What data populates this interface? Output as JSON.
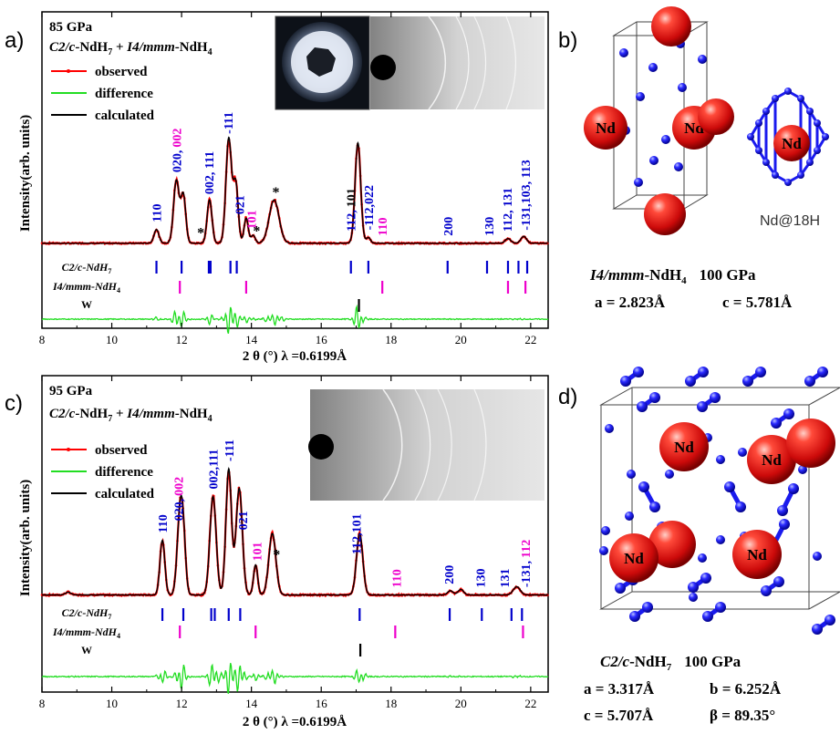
{
  "colors": {
    "observed": "#ff0000",
    "difference": "#22dd22",
    "calculated": "#000000",
    "c2c_ticks": "#0000cc",
    "i4_ticks": "#ee00cc",
    "w_ticks": "#000000",
    "nd_atom": "#dd1111",
    "h_atom": "#1a1aee"
  },
  "panels": {
    "a": {
      "letter": "a)",
      "pressure": "85 GPa",
      "phase_c2c": "C2/c",
      "phase_c2c_rest": "-NdH",
      "phase_c2c_sub": "7",
      "phase_plus": " + ",
      "phase_i4": "I4/mmm",
      "phase_i4_rest": "-NdH",
      "phase_i4_sub": "4",
      "legend_observed": "observed",
      "legend_difference": "difference",
      "legend_calculated": "calculated",
      "row_c2c": "C2/c-NdH",
      "row_c2c_sub": "7",
      "row_i4": "I4/mmm-NdH",
      "row_i4_sub": "4",
      "row_w": "W",
      "ylabel": "Intensity(arb. units)",
      "xlabel": "2 θ (°) λ =0.6199Å"
    },
    "c": {
      "letter": "c)",
      "pressure": "95 GPa",
      "phase_c2c": "C2/c",
      "phase_c2c_rest": "-NdH",
      "phase_c2c_sub": "7",
      "phase_plus": " + ",
      "phase_i4": "I4/mmm",
      "phase_i4_rest": "-NdH",
      "phase_i4_sub": "4",
      "legend_observed": "observed",
      "legend_difference": "difference",
      "legend_calculated": "calculated",
      "row_c2c": "C2/c-NdH",
      "row_c2c_sub": "7",
      "row_i4": "I4/mmm-NdH",
      "row_i4_sub": "4",
      "row_w": "W",
      "ylabel": "Intensity(arb. units)",
      "xlabel": "2 θ (°) λ =0.6199Å"
    },
    "b": {
      "letter": "b)",
      "nd_label": "Nd",
      "cage_caption": "Nd@18H",
      "structure_name": "I4/mmm",
      "structure_rest": "-NdH",
      "structure_sub": "4",
      "structure_pressure": "100 GPa",
      "param_a": "a = 2.823Å",
      "param_c": "c = 5.781Å"
    },
    "d": {
      "letter": "d)",
      "nd_label": "Nd",
      "structure_name": "C2/c",
      "structure_rest": "-NdH",
      "structure_sub": "7",
      "structure_pressure": "100 GPa",
      "param_a": "a = 3.317Å",
      "param_b": "b = 6.252Å",
      "param_c": "c = 5.707Å",
      "param_beta": "β = 89.35°"
    }
  },
  "chart_data": [
    {
      "type": "line",
      "panel": "a",
      "title": "85 GPa",
      "xlabel": "2 θ (°) λ =0.6199Å",
      "ylabel": "Intensity(arb. units)",
      "xlim": [
        8,
        22.5
      ],
      "xticks": [
        8,
        10,
        12,
        14,
        16,
        18,
        20,
        22
      ],
      "background": 0.05,
      "peaks": [
        {
          "x": 11.28,
          "h": 0.12,
          "w": 0.07
        },
        {
          "x": 11.85,
          "h": 0.55,
          "w": 0.08
        },
        {
          "x": 12.05,
          "h": 0.42,
          "w": 0.07
        },
        {
          "x": 12.8,
          "h": 0.38,
          "w": 0.07
        },
        {
          "x": 13.35,
          "h": 0.92,
          "w": 0.08
        },
        {
          "x": 13.55,
          "h": 0.52,
          "w": 0.07
        },
        {
          "x": 13.85,
          "h": 0.22,
          "w": 0.06
        },
        {
          "x": 14.05,
          "h": 0.07,
          "w": 0.06
        },
        {
          "x": 14.65,
          "h": 0.38,
          "w": 0.14
        },
        {
          "x": 17.05,
          "h": 0.88,
          "w": 0.08
        },
        {
          "x": 17.35,
          "h": 0.05,
          "w": 0.06
        },
        {
          "x": 21.35,
          "h": 0.04,
          "w": 0.08
        },
        {
          "x": 21.8,
          "h": 0.06,
          "w": 0.08
        }
      ],
      "hkl_labels": [
        {
          "x": 11.28,
          "label": "110",
          "phase": "c2c"
        },
        {
          "x": 11.85,
          "label": "020,",
          "phase": "c2c",
          "extra": "002",
          "extra_phase": "i4"
        },
        {
          "x": 12.78,
          "label": "002, 111",
          "phase": "c2c"
        },
        {
          "x": 13.33,
          "label": "-111",
          "phase": "c2c"
        },
        {
          "x": 13.65,
          "label": "021",
          "phase": "c2c"
        },
        {
          "x": 14.0,
          "label": "101",
          "phase": "i4"
        },
        {
          "x": 16.85,
          "label": "112,",
          "phase": "c2c",
          "extra": "101",
          "extra_phase": "w"
        },
        {
          "x": 17.35,
          "label": "-112,022",
          "phase": "c2c"
        },
        {
          "x": 17.75,
          "label": "110",
          "phase": "i4"
        },
        {
          "x": 19.62,
          "label": "200",
          "phase": "c2c"
        },
        {
          "x": 20.8,
          "label": "130",
          "phase": "c2c"
        },
        {
          "x": 21.32,
          "label": "112, 131",
          "phase": "mixed"
        },
        {
          "x": 21.85,
          "label": "-131,103, 113",
          "phase": "mixed"
        }
      ],
      "asterisks": [
        12.55,
        14.15,
        14.7
      ],
      "ticks_c2c": [
        11.28,
        12.0,
        12.78,
        12.83,
        13.4,
        13.58,
        16.85,
        17.35,
        19.62,
        20.75,
        21.35,
        21.65,
        21.9
      ],
      "ticks_i4": [
        11.95,
        13.85,
        17.75,
        21.35,
        21.85
      ],
      "ticks_w": [
        17.08
      ]
    },
    {
      "type": "line",
      "panel": "c",
      "title": "95 GPa",
      "xlabel": "2 θ (°) λ =0.6199Å",
      "ylabel": "Intensity(arb. units)",
      "xlim": [
        8,
        22.5
      ],
      "xticks": [
        8,
        10,
        12,
        14,
        16,
        18,
        20,
        22
      ],
      "background": 0.05,
      "peaks": [
        {
          "x": 8.75,
          "h": 0.02,
          "w": 0.08
        },
        {
          "x": 11.45,
          "h": 0.4,
          "w": 0.07
        },
        {
          "x": 11.95,
          "h": 0.55,
          "w": 0.08
        },
        {
          "x": 12.05,
          "h": 0.35,
          "w": 0.07
        },
        {
          "x": 12.9,
          "h": 0.72,
          "w": 0.09
        },
        {
          "x": 13.35,
          "h": 0.92,
          "w": 0.08
        },
        {
          "x": 13.65,
          "h": 0.78,
          "w": 0.09
        },
        {
          "x": 14.12,
          "h": 0.22,
          "w": 0.06
        },
        {
          "x": 14.6,
          "h": 0.45,
          "w": 0.1
        },
        {
          "x": 17.1,
          "h": 0.45,
          "w": 0.09
        },
        {
          "x": 19.7,
          "h": 0.03,
          "w": 0.08
        },
        {
          "x": 20.0,
          "h": 0.04,
          "w": 0.08
        },
        {
          "x": 21.6,
          "h": 0.06,
          "w": 0.1
        }
      ],
      "hkl_labels": [
        {
          "x": 11.45,
          "label": "110",
          "phase": "c2c"
        },
        {
          "x": 11.9,
          "label": "020,",
          "phase": "c2c",
          "extra": "002",
          "extra_phase": "i4"
        },
        {
          "x": 12.9,
          "label": "002,111",
          "phase": "c2c"
        },
        {
          "x": 13.35,
          "label": "-111",
          "phase": "c2c"
        },
        {
          "x": 13.75,
          "label": "021",
          "phase": "c2c"
        },
        {
          "x": 14.15,
          "label": "101",
          "phase": "i4"
        },
        {
          "x": 17.0,
          "label": "112,101",
          "phase": "c2c"
        },
        {
          "x": 18.15,
          "label": "110",
          "phase": "i4"
        },
        {
          "x": 19.65,
          "label": "200",
          "phase": "c2c"
        },
        {
          "x": 20.55,
          "label": "130",
          "phase": "c2c"
        },
        {
          "x": 21.25,
          "label": "131",
          "phase": "c2c"
        },
        {
          "x": 21.85,
          "label": "-131,",
          "phase": "c2c",
          "extra": "112",
          "extra_phase": "i4"
        }
      ],
      "asterisks": [
        14.72
      ],
      "ticks_c2c": [
        11.45,
        12.05,
        12.85,
        12.95,
        13.35,
        13.68,
        17.1,
        19.68,
        20.6,
        21.45,
        21.75
      ],
      "ticks_i4": [
        11.95,
        14.12,
        18.12,
        21.78
      ],
      "ticks_w": [
        17.12
      ]
    }
  ]
}
